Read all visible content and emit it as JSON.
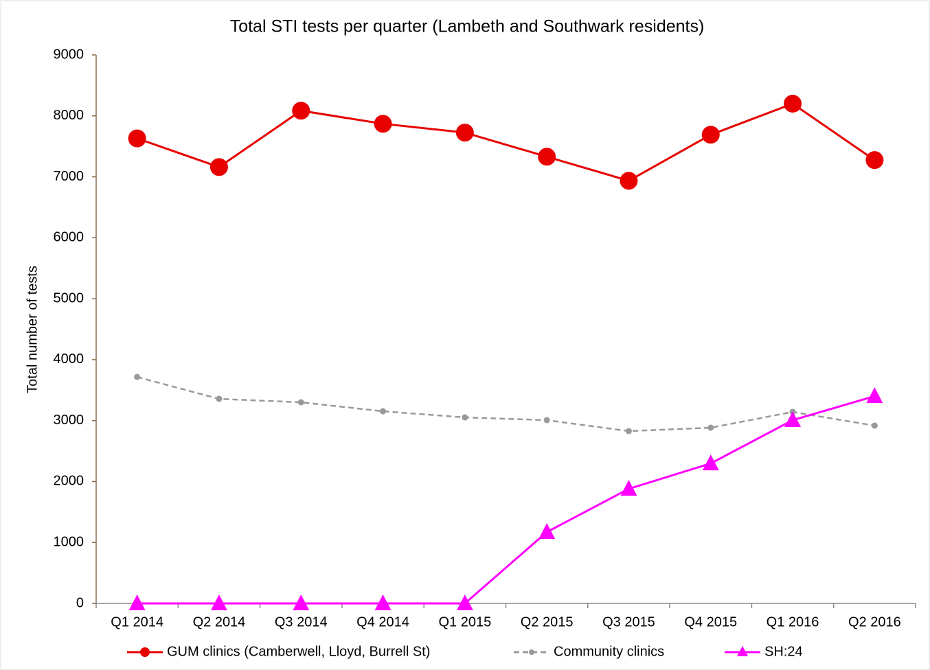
{
  "chart_data": {
    "type": "line",
    "title": "Total STI tests per quarter (Lambeth and Southwark residents)",
    "y_label": "Total number  of tests",
    "categories": [
      "Q1 2014",
      "Q2 2014",
      "Q3 2014",
      "Q4 2014",
      "Q1 2015",
      "Q2 2015",
      "Q3 2015",
      "Q4 2015",
      "Q1 2016",
      "Q2 2016"
    ],
    "series": [
      {
        "name": "GUM clinics (Camberwell, Lloyd, Burrell St)",
        "color": "#e80000",
        "marker": "circle",
        "dash": false,
        "values": [
          7630,
          7160,
          8085,
          7870,
          7725,
          7330,
          6935,
          7690,
          8200,
          7275
        ]
      },
      {
        "name": "Community clinics",
        "color": "#999999",
        "marker": "dot",
        "dash": true,
        "values": [
          3716,
          3356,
          3300,
          3153,
          3052,
          3007,
          2827,
          2883,
          3142,
          2917
        ]
      },
      {
        "name": "SH:24",
        "color": "#ff00ff",
        "marker": "triangle",
        "dash": false,
        "values": [
          0,
          0,
          0,
          0,
          0,
          1171,
          1880,
          2297,
          3007,
          3401
        ]
      }
    ],
    "ylim": [
      0,
      9000
    ],
    "yticks": [
      0,
      1000,
      2000,
      3000,
      4000,
      5000,
      6000,
      7000,
      8000,
      9000
    ],
    "legend": "bottom"
  }
}
